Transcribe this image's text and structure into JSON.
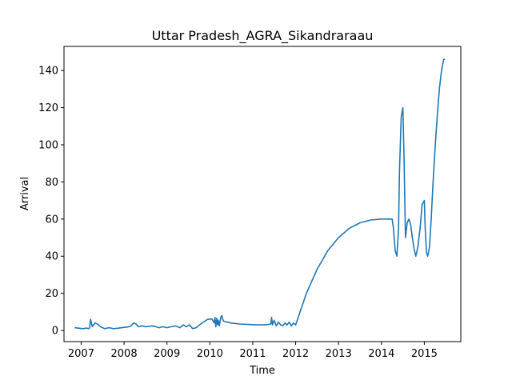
{
  "chart_data": {
    "type": "line",
    "title": "Uttar Pradesh_AGRA_Sikandraraau",
    "xlabel": "Time",
    "ylabel": "Arrival",
    "xlim": [
      2006.6,
      2015.85
    ],
    "ylim": [
      -6,
      153
    ],
    "grid": false,
    "legend": "none",
    "color": "#1f77b4",
    "x_ticks": [
      2007,
      2008,
      2009,
      2010,
      2011,
      2012,
      2013,
      2014,
      2015
    ],
    "x_tick_labels": [
      "2007",
      "2008",
      "2009",
      "2010",
      "2011",
      "2012",
      "2013",
      "2014",
      "2015"
    ],
    "y_ticks": [
      0,
      20,
      40,
      60,
      80,
      100,
      120,
      140
    ],
    "y_tick_labels": [
      "0",
      "20",
      "40",
      "60",
      "80",
      "100",
      "120",
      "140"
    ],
    "series": [
      {
        "x": [
          2006.85,
          2006.95,
          2007.05,
          2007.12,
          2007.18,
          2007.2,
          2007.22,
          2007.26,
          2007.32,
          2007.38,
          2007.45,
          2007.55,
          2007.65,
          2007.75,
          2007.85,
          2007.95,
          2008.05,
          2008.15,
          2008.22,
          2008.28,
          2008.34,
          2008.42,
          2008.5,
          2008.58,
          2008.66,
          2008.74,
          2008.82,
          2008.9,
          2009.0,
          2009.1,
          2009.2,
          2009.3,
          2009.38,
          2009.45,
          2009.52,
          2009.6,
          2009.68,
          2009.76,
          2009.85,
          2009.95,
          2010.05,
          2010.1,
          2010.12,
          2010.14,
          2010.16,
          2010.18,
          2010.2,
          2010.22,
          2010.24,
          2010.26,
          2010.28,
          2010.3,
          2010.32,
          2010.5,
          2010.7,
          2010.9,
          2011.1,
          2011.3,
          2011.42,
          2011.44,
          2011.46,
          2011.5,
          2011.55,
          2011.6,
          2011.65,
          2011.7,
          2011.75,
          2011.8,
          2011.85,
          2011.9,
          2011.95,
          2012.0,
          2012.25,
          2012.5,
          2012.75,
          2013.0,
          2013.25,
          2013.5,
          2013.75,
          2014.0,
          2014.25,
          2014.28,
          2014.32,
          2014.36,
          2014.4,
          2014.42,
          2014.46,
          2014.5,
          2014.53,
          2014.56,
          2014.6,
          2014.64,
          2014.68,
          2014.72,
          2014.76,
          2014.8,
          2014.85,
          2014.9,
          2014.95,
          2015.0,
          2015.02,
          2015.05,
          2015.08,
          2015.12,
          2015.16,
          2015.2,
          2015.25,
          2015.3,
          2015.35,
          2015.4,
          2015.45,
          2015.48
        ],
        "y": [
          1.5,
          1.2,
          1.0,
          1.3,
          1.0,
          1.8,
          6.0,
          2.0,
          4.0,
          3.5,
          2.0,
          1.0,
          1.5,
          1.0,
          1.2,
          1.5,
          1.8,
          2.2,
          4.0,
          3.5,
          2.0,
          2.5,
          2.0,
          2.2,
          2.5,
          2.0,
          1.5,
          2.0,
          1.5,
          2.0,
          2.5,
          1.5,
          3.0,
          2.0,
          3.0,
          1.0,
          1.5,
          3.0,
          4.5,
          6.0,
          6.2,
          4.0,
          7.0,
          2.0,
          6.5,
          3.0,
          5.5,
          2.5,
          5.0,
          7.5,
          8.0,
          6.0,
          5.0,
          4.0,
          3.5,
          3.2,
          3.0,
          3.0,
          3.5,
          7.0,
          3.0,
          5.5,
          2.5,
          4.5,
          3.0,
          2.5,
          4.0,
          3.0,
          4.5,
          2.5,
          4.0,
          3.0,
          20.0,
          33.0,
          43.0,
          50.0,
          55.0,
          58.0,
          59.5,
          60.0,
          60.0,
          55.0,
          43.0,
          40.0,
          55.0,
          85.0,
          115.0,
          120.0,
          90.0,
          50.0,
          58.0,
          60.0,
          57.0,
          50.0,
          44.0,
          40.0,
          45.0,
          55.0,
          68.0,
          70.0,
          55.0,
          42.0,
          40.0,
          45.0,
          60.0,
          78.0,
          98.0,
          115.0,
          130.0,
          140.0,
          146.0,
          146.0
        ]
      }
    ]
  }
}
